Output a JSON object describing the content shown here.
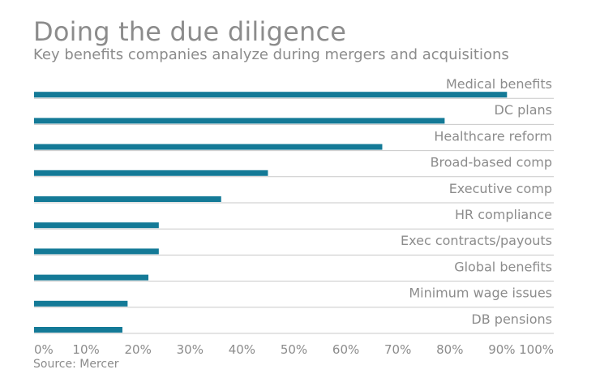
{
  "title": "Doing the due diligence",
  "subtitle": "Key benefits companies analyze during mergers and acquisitions",
  "source": "Source: Mercer",
  "colors": {
    "bar": "#147a97",
    "gridline": "#c8c8c8",
    "text": "#8c8c8c"
  },
  "chart_data": {
    "type": "bar",
    "orientation": "horizontal",
    "categories": [
      "Medical benefits",
      "DC plans",
      "Healthcare reform",
      "Broad-based comp",
      "Executive comp",
      "HR compliance",
      "Exec contracts/payouts",
      "Global benefits",
      "Minimum wage issues",
      "DB pensions"
    ],
    "values": [
      91,
      79,
      67,
      45,
      36,
      24,
      24,
      22,
      18,
      17
    ],
    "xlim": [
      0,
      100
    ],
    "x_ticks": [
      0,
      10,
      20,
      30,
      40,
      50,
      60,
      70,
      80,
      90,
      100
    ],
    "x_tick_labels": [
      "0%",
      "10%",
      "20%",
      "30%",
      "40%",
      "50%",
      "60%",
      "70%",
      "80%",
      "90%",
      "100%"
    ],
    "category_label_position": "right, above bar",
    "grid": "horizontal separators between categories",
    "legend": "none"
  }
}
